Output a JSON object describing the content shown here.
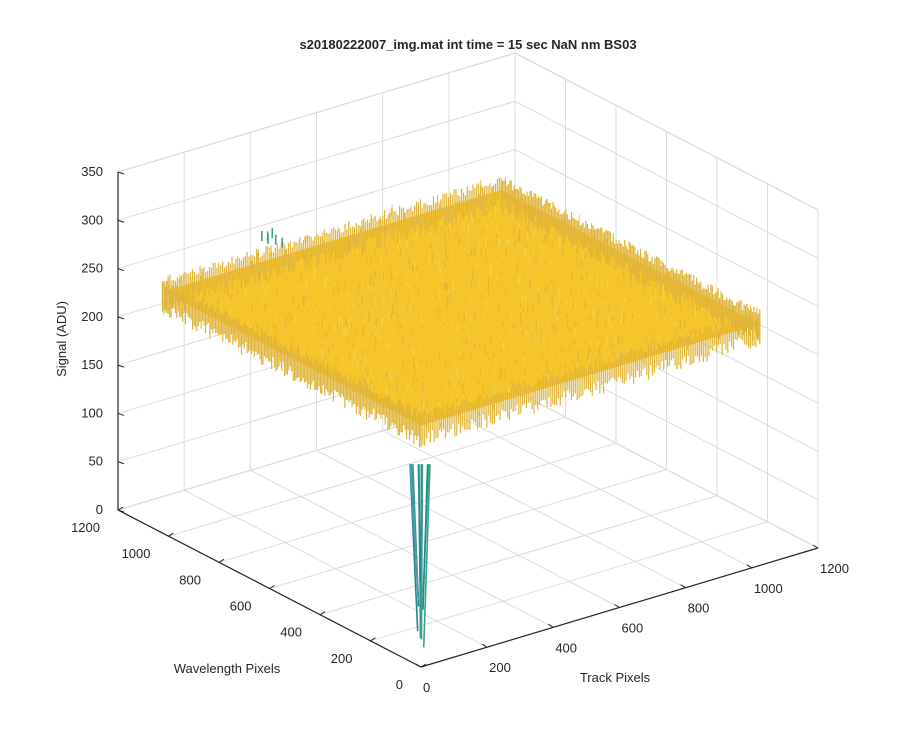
{
  "chart_data": {
    "type": "surface3d",
    "title": "s20180222007_img.mat int time = 15 sec   NaN nm BS03",
    "xlabel": "Track Pixels",
    "ylabel": "Wavelength Pixels",
    "zlabel": "Signal (ADU)",
    "xlim": [
      0,
      1200
    ],
    "ylim": [
      0,
      1200
    ],
    "zlim": [
      0,
      350
    ],
    "xticks": [
      "0",
      "200",
      "400",
      "600",
      "800",
      "1000",
      "1200"
    ],
    "yticks": [
      "0",
      "200",
      "400",
      "600",
      "800",
      "1000",
      "1200"
    ],
    "zticks": [
      "0",
      "50",
      "100",
      "150",
      "200",
      "250",
      "300",
      "350"
    ],
    "grid": true,
    "colormap": "parula",
    "surface": {
      "x_range": [
        0,
        1024
      ],
      "y_range": [
        0,
        1024
      ],
      "baseline_signal": 250,
      "noise_amplitude": 10,
      "dip": {
        "x": 0,
        "y": 0,
        "min_signal": 20
      }
    },
    "colors": {
      "surface_high": "#f5c52b",
      "surface_mid": "#e0b43a",
      "dip_low": "#23878e",
      "dip_mid": "#3aa18a",
      "axis": "#262626",
      "grid": "#dcdcdc"
    }
  }
}
